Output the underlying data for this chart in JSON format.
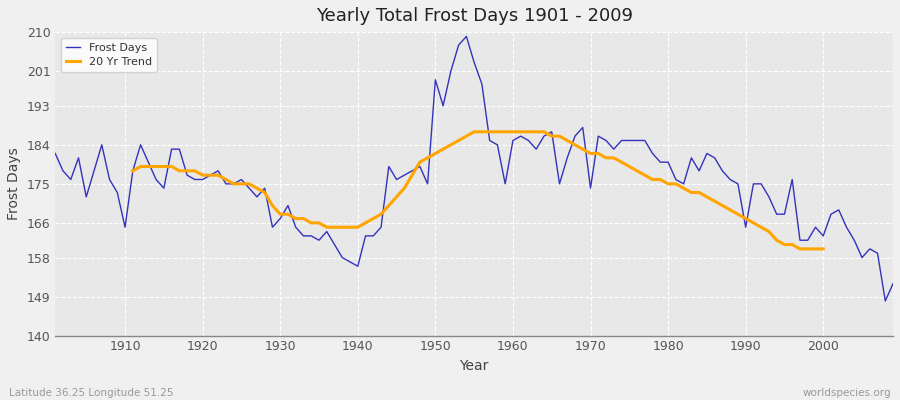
{
  "title": "Yearly Total Frost Days 1901 - 2009",
  "xlabel": "Year",
  "ylabel": "Frost Days",
  "footnote_left": "Latitude 36.25 Longitude 51.25",
  "footnote_right": "worldspecies.org",
  "line_color": "#3333bb",
  "trend_color": "#FFA500",
  "fig_bg_color": "#f0f0f0",
  "plot_bg_color": "#e8e8e8",
  "ylim": [
    140,
    210
  ],
  "yticks": [
    140,
    149,
    158,
    166,
    175,
    184,
    193,
    201,
    210
  ],
  "xlim": [
    1901,
    2009
  ],
  "xticks": [
    1910,
    1920,
    1930,
    1940,
    1950,
    1960,
    1970,
    1980,
    1990,
    2000
  ],
  "years": [
    1901,
    1902,
    1903,
    1904,
    1905,
    1906,
    1907,
    1908,
    1909,
    1910,
    1911,
    1912,
    1913,
    1914,
    1915,
    1916,
    1917,
    1918,
    1919,
    1920,
    1921,
    1922,
    1923,
    1924,
    1925,
    1926,
    1927,
    1928,
    1929,
    1930,
    1931,
    1932,
    1933,
    1934,
    1935,
    1936,
    1937,
    1938,
    1939,
    1940,
    1941,
    1942,
    1943,
    1944,
    1945,
    1946,
    1947,
    1948,
    1949,
    1950,
    1951,
    1952,
    1953,
    1954,
    1955,
    1956,
    1957,
    1958,
    1959,
    1960,
    1961,
    1962,
    1963,
    1964,
    1965,
    1966,
    1967,
    1968,
    1969,
    1970,
    1971,
    1972,
    1973,
    1974,
    1975,
    1976,
    1977,
    1978,
    1979,
    1980,
    1981,
    1982,
    1983,
    1984,
    1985,
    1986,
    1987,
    1988,
    1989,
    1990,
    1991,
    1992,
    1993,
    1994,
    1995,
    1996,
    1997,
    1998,
    1999,
    2000,
    2001,
    2002,
    2003,
    2004,
    2005,
    2006,
    2007,
    2008,
    2009
  ],
  "frost_days": [
    182,
    178,
    176,
    181,
    172,
    178,
    184,
    176,
    173,
    165,
    178,
    184,
    180,
    176,
    174,
    183,
    183,
    177,
    176,
    176,
    177,
    178,
    175,
    175,
    176,
    174,
    172,
    174,
    165,
    167,
    170,
    165,
    163,
    163,
    162,
    164,
    161,
    158,
    157,
    156,
    163,
    163,
    165,
    179,
    176,
    177,
    178,
    179,
    175,
    199,
    193,
    201,
    207,
    209,
    203,
    198,
    185,
    184,
    175,
    185,
    186,
    185,
    183,
    186,
    187,
    175,
    181,
    186,
    188,
    174,
    186,
    185,
    183,
    185,
    185,
    185,
    185,
    182,
    180,
    180,
    176,
    175,
    181,
    178,
    182,
    181,
    178,
    176,
    175,
    165,
    175,
    175,
    172,
    168,
    168,
    176,
    162,
    162,
    165,
    163,
    168,
    169,
    165,
    162,
    158,
    160,
    159,
    148,
    152
  ],
  "trend_years": [
    1911,
    1912,
    1913,
    1914,
    1915,
    1916,
    1917,
    1918,
    1919,
    1920,
    1921,
    1922,
    1923,
    1924,
    1925,
    1926,
    1927,
    1928,
    1929,
    1930,
    1931,
    1932,
    1933,
    1934,
    1935,
    1936,
    1937,
    1938,
    1939,
    1940,
    1941,
    1942,
    1943,
    1944,
    1945,
    1946,
    1947,
    1948,
    1949,
    1950,
    1951,
    1952,
    1953,
    1954,
    1955,
    1956,
    1957,
    1958,
    1959,
    1960,
    1961,
    1962,
    1963,
    1964,
    1965,
    1966,
    1967,
    1968,
    1969,
    1970,
    1971,
    1972,
    1973,
    1974,
    1975,
    1976,
    1977,
    1978,
    1979,
    1980,
    1981,
    1982,
    1983,
    1984,
    1985,
    1986,
    1987,
    1988,
    1989,
    1990,
    1991,
    1992,
    1993,
    1994,
    1995,
    1996,
    1997,
    1998,
    1999,
    2000
  ],
  "trend_values": [
    178,
    179,
    179,
    179,
    179,
    179,
    178,
    178,
    178,
    177,
    177,
    177,
    176,
    175,
    175,
    175,
    174,
    173,
    170,
    168,
    168,
    167,
    167,
    166,
    166,
    165,
    165,
    165,
    165,
    165,
    166,
    167,
    168,
    170,
    172,
    174,
    177,
    180,
    181,
    182,
    183,
    184,
    185,
    186,
    187,
    187,
    187,
    187,
    187,
    187,
    187,
    187,
    187,
    187,
    186,
    186,
    185,
    184,
    183,
    182,
    182,
    181,
    181,
    180,
    179,
    178,
    177,
    176,
    176,
    175,
    175,
    174,
    173,
    173,
    172,
    171,
    170,
    169,
    168,
    167,
    166,
    165,
    164,
    162,
    161,
    161,
    160,
    160,
    160,
    160
  ]
}
